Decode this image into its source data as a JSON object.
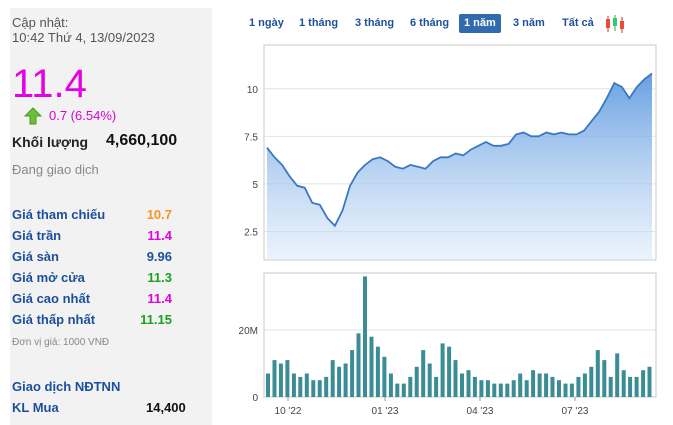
{
  "info": {
    "update_label": "Cập nhật:",
    "update_time": "10:42 Thứ 4, 13/09/2023",
    "price": "11.4",
    "change": "0.7 (6.54%)",
    "volume_label": "Khối lượng",
    "volume_value": "4,660,100",
    "status": "Đang giao dịch",
    "unit": "Đơn vị giá: 1000 VNĐ",
    "foreign_title": "Giao dịch NĐTNN",
    "foreign_buy_label": "KL Mua",
    "foreign_buy_value": "14,400"
  },
  "price_rows": [
    {
      "label": "Giá tham chiếu",
      "value": "10.7",
      "color": "#f7931e"
    },
    {
      "label": "Giá trần",
      "value": "11.4",
      "color": "#e600e6"
    },
    {
      "label": "Giá sàn",
      "value": "9.96",
      "color": "#1c4f9c"
    },
    {
      "label": "Giá mở cửa",
      "value": "11.3",
      "color": "#1ea01e"
    },
    {
      "label": "Giá cao nhất",
      "value": "11.4",
      "color": "#e600e6"
    },
    {
      "label": "Giá thấp nhất",
      "value": "11.15",
      "color": "#1ea01e"
    }
  ],
  "tabs": [
    {
      "label": "1 ngày",
      "active": false
    },
    {
      "label": "1 tháng",
      "active": false
    },
    {
      "label": "3 tháng",
      "active": false
    },
    {
      "label": "6 tháng",
      "active": false
    },
    {
      "label": "1 năm",
      "active": true
    },
    {
      "label": "3 năm",
      "active": false
    },
    {
      "label": "Tất cả",
      "active": false
    }
  ],
  "colors": {
    "price_magenta": "#e600e6",
    "up_green": "#6cbf3a",
    "line": "#3a78c2",
    "volume_bar": "#3a8c95",
    "tab_active": "#2f6bad"
  },
  "chart_data": {
    "type": "area",
    "x_tick_labels": [
      "10 '22",
      "01 '23",
      "04 '23",
      "07 '23"
    ],
    "price": {
      "y_ticks": [
        "2.5",
        "5",
        "7.5",
        "10"
      ],
      "ylim": [
        1.0,
        12.3
      ],
      "values": [
        6.9,
        6.4,
        6.0,
        5.4,
        4.9,
        4.8,
        4.0,
        3.9,
        3.2,
        2.8,
        3.6,
        4.9,
        5.6,
        6.0,
        6.3,
        6.4,
        6.2,
        5.9,
        5.8,
        6.0,
        5.9,
        5.8,
        6.2,
        6.4,
        6.4,
        6.6,
        6.5,
        6.8,
        7.0,
        7.2,
        7.0,
        7.0,
        7.1,
        7.6,
        7.7,
        7.5,
        7.5,
        7.7,
        7.6,
        7.7,
        7.6,
        7.6,
        7.8,
        8.3,
        8.8,
        9.5,
        10.3,
        10.1,
        9.5,
        10.1,
        10.5,
        10.8
      ]
    },
    "volume": {
      "y_ticks": [
        "0",
        "20M"
      ],
      "ylim_millions": [
        0,
        37
      ],
      "values_millions": [
        7,
        11,
        10,
        11,
        7,
        6,
        7,
        5,
        5,
        6,
        11,
        9,
        10,
        14,
        19,
        36,
        18,
        15,
        12,
        7,
        4,
        4,
        6,
        9,
        14,
        10,
        6,
        16,
        15,
        11,
        7,
        8,
        6,
        5,
        5,
        4,
        4,
        4,
        5,
        7,
        5,
        8,
        7,
        7,
        6,
        5,
        4,
        4,
        6,
        7,
        9,
        14,
        11,
        6,
        13,
        8,
        6,
        6,
        8,
        9
      ]
    }
  }
}
